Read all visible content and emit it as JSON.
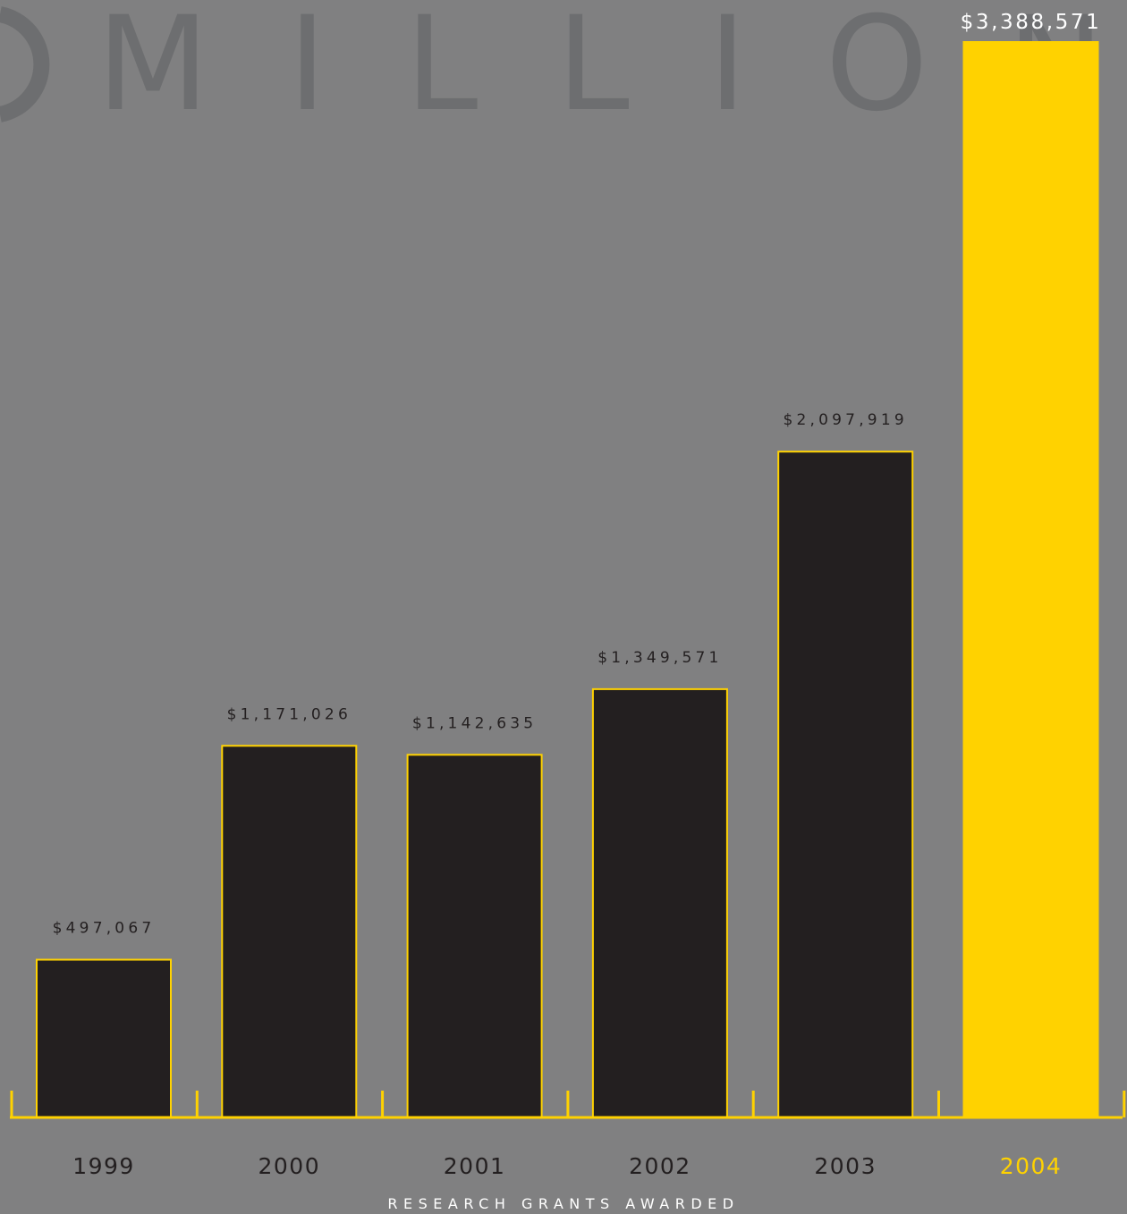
{
  "background_word": "MILLION",
  "chart_data": {
    "type": "bar",
    "title": "",
    "xlabel": "RESEARCH GRANTS AWARDED",
    "ylabel": "",
    "ylim": [
      0,
      3388571
    ],
    "categories": [
      "1999",
      "2000",
      "2001",
      "2002",
      "2003",
      "2004"
    ],
    "values": [
      497067,
      1171026,
      1142635,
      1349571,
      2097919,
      3388571
    ],
    "value_labels": [
      "$497,067",
      "$1,171,026",
      "$1,142,635",
      "$1,349,571",
      "$2,097,919",
      "$3,388,571"
    ],
    "highlight_index": 5,
    "grid": false,
    "legend": "none"
  },
  "colors": {
    "background": "#808081",
    "bar_fill": "#231f20",
    "accent": "#ffd200",
    "text_dark": "#231f20",
    "text_light": "#ffffff",
    "watermark": "#6d6e70"
  }
}
